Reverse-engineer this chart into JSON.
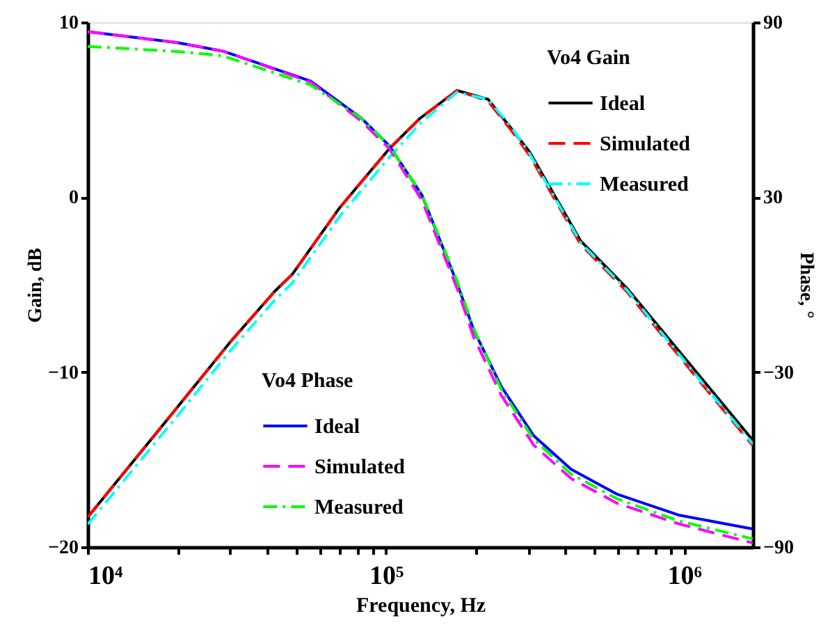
{
  "chart_data": {
    "type": "line",
    "xlabel": "Frequency, Hz",
    "ylabel": "Gain, dB",
    "y2label": "Phase, °",
    "legend_title": [
      "Vo4 Gain",
      "Vo4 Phase"
    ],
    "log": "x",
    "grid": false,
    "legend": [
      "top right",
      "bottom left"
    ],
    "xlim": [
      10000,
      1700000
    ],
    "xticks": [
      {
        "value": 10000,
        "label": "10⁴"
      },
      {
        "value": 20000,
        "label": null
      },
      {
        "value": 30000,
        "label": null
      },
      {
        "value": 40000,
        "label": null
      },
      {
        "value": 50000,
        "label": null
      },
      {
        "value": 60000,
        "label": null
      },
      {
        "value": 70000,
        "label": null
      },
      {
        "value": 80000,
        "label": null
      },
      {
        "value": 90000,
        "label": null
      },
      {
        "value": 100000,
        "label": "10⁵"
      },
      {
        "value": 200000,
        "label": null
      },
      {
        "value": 300000,
        "label": null
      },
      {
        "value": 400000,
        "label": null
      },
      {
        "value": 500000,
        "label": null
      },
      {
        "value": 600000,
        "label": null
      },
      {
        "value": 700000,
        "label": null
      },
      {
        "value": 800000,
        "label": null
      },
      {
        "value": 900000,
        "label": null
      },
      {
        "value": 1000000,
        "label": "10⁶"
      }
    ],
    "ylim": [
      -20,
      10
    ],
    "yticks": [
      -20,
      -10,
      0,
      10
    ],
    "y2lim": [
      -90,
      90
    ],
    "y2ticks": [
      -90,
      -30,
      30,
      90
    ],
    "series": [
      {
        "name": "Ideal",
        "color": "#000000",
        "line_style": "solid",
        "axis": "y",
        "x": [
          10000,
          20000,
          30000,
          42300,
          48600,
          70000,
          103000,
          130000,
          173000,
          220000,
          264000,
          303000,
          450000,
          643000,
          1100000,
          1700000
        ],
        "values": [
          -18.3,
          -12.0,
          -8.3,
          -5.4,
          -4.4,
          -0.6,
          2.8,
          4.5,
          6.1,
          5.6,
          3.9,
          2.6,
          -2.5,
          -5.2,
          -10.0,
          -13.9
        ]
      },
      {
        "name": "Simulated",
        "color": "#ff0000",
        "line_style": "dashed",
        "axis": "y",
        "x": [
          10000,
          20000,
          30000,
          42300,
          48600,
          70000,
          103000,
          130000,
          173000,
          220000,
          264000,
          303000,
          450000,
          643000,
          1100000,
          1700000
        ],
        "values": [
          -18.3,
          -12.0,
          -8.3,
          -5.4,
          -4.4,
          -0.6,
          2.8,
          4.5,
          6.1,
          5.5,
          3.8,
          2.4,
          -2.7,
          -5.4,
          -10.3,
          -14.2
        ]
      },
      {
        "name": "Measured",
        "color": "#00ffff",
        "line_style": "dashdot",
        "axis": "y",
        "x": [
          10000,
          20000,
          30000,
          42300,
          48600,
          70000,
          103000,
          130000,
          173000,
          220000,
          264000,
          303000,
          450000,
          643000,
          1100000,
          1700000
        ],
        "values": [
          -18.7,
          -12.5,
          -8.8,
          -5.9,
          -4.9,
          -1.1,
          2.3,
          4.2,
          6.0,
          5.6,
          4.0,
          2.5,
          -2.6,
          -5.3,
          -10.2,
          -14.1
        ]
      },
      {
        "name": "Ideal",
        "color": "#0000ff",
        "line_style": "solid",
        "axis": "y2",
        "x": [
          10000,
          20000,
          28400,
          56000,
          83000,
          103000,
          132000,
          173000,
          197000,
          244000,
          313000,
          418000,
          597000,
          957000,
          1700000
        ],
        "values": [
          86.8,
          83,
          80.1,
          69.8,
          57,
          47.5,
          30.8,
          0.7,
          -15.5,
          -35,
          -51.8,
          -63.3,
          -71.9,
          -79,
          -83.8
        ]
      },
      {
        "name": "Simulated",
        "color": "#ff00ff",
        "line_style": "dashed",
        "axis": "y2",
        "x": [
          10000,
          20000,
          28400,
          56000,
          83000,
          103000,
          132000,
          173000,
          197000,
          244000,
          313000,
          418000,
          597000,
          957000,
          1700000
        ],
        "values": [
          86.8,
          83,
          80.1,
          69.5,
          56,
          46.5,
          29,
          -1,
          -18,
          -38,
          -55,
          -66.5,
          -75,
          -82,
          -88.6
        ]
      },
      {
        "name": "Measured",
        "color": "#00ff00",
        "line_style": "dashdot",
        "axis": "y2",
        "x": [
          10000,
          20000,
          28400,
          56000,
          83000,
          103000,
          132000,
          173000,
          197000,
          244000,
          313000,
          418000,
          597000,
          957000,
          1700000
        ],
        "values": [
          81.7,
          80,
          78.5,
          68.5,
          57,
          47.5,
          31,
          1.5,
          -15,
          -36,
          -53,
          -65,
          -73.5,
          -81,
          -87.2
        ]
      }
    ]
  }
}
